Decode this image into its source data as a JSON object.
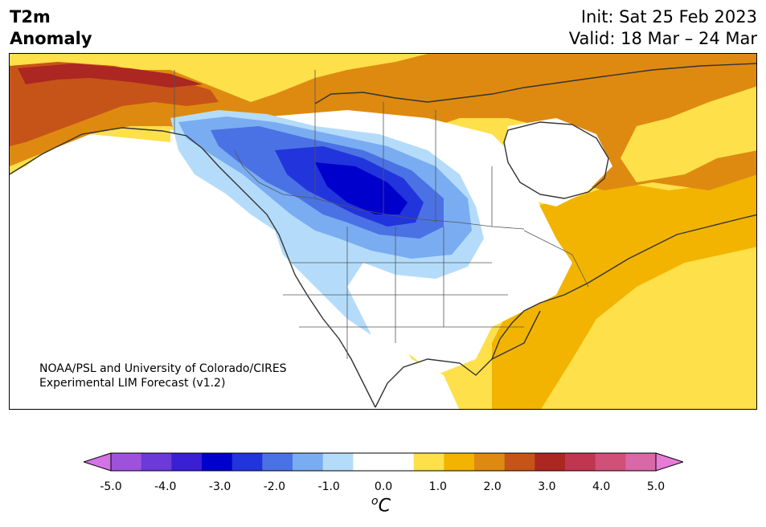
{
  "header": {
    "title_line1": "T2m",
    "title_line2": "Anomaly",
    "init": "Init: Sat 25 Feb 2023",
    "valid": "Valid: 18 Mar – 24 Mar"
  },
  "credit": {
    "line1": "NOAA/PSL and University of Colorado/CIRES",
    "line2": "Experimental LIM Forecast (v1.2)"
  },
  "colorbar": {
    "colors": [
      "#d472e8",
      "#9e52dc",
      "#6b3ad8",
      "#3a1fd4",
      "#0000cc",
      "#2234dc",
      "#4a72e4",
      "#7aacf2",
      "#b4dcfa",
      "#ffffff",
      "#ffffff",
      "#fde04a",
      "#f2b400",
      "#de8a10",
      "#c65418",
      "#ac2622",
      "#c03650",
      "#d0507a",
      "#d868a6",
      "#e87ad8"
    ],
    "tick_labels": [
      "-5.0",
      "-4.0",
      "-3.0",
      "-2.0",
      "-1.0",
      "0.0",
      "1.0",
      "2.0",
      "3.0",
      "4.0",
      "5.0"
    ],
    "unit_base": "C",
    "unit_super": "o"
  },
  "map_colors": {
    "ocean": "#ffffff",
    "coast": "#333333"
  }
}
